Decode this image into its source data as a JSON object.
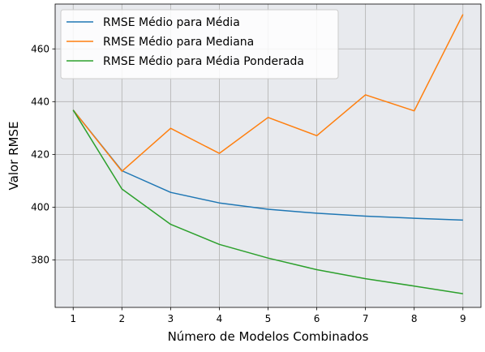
{
  "chart_data": {
    "type": "line",
    "xlabel": "Número de Modelos Combinados",
    "ylabel": "Valor RMSE",
    "x": [
      1,
      2,
      3,
      4,
      5,
      6,
      7,
      8,
      9
    ],
    "xticks": [
      1,
      2,
      3,
      4,
      5,
      6,
      7,
      8,
      9
    ],
    "yticks": [
      380,
      400,
      420,
      440,
      460
    ],
    "xlim": [
      0.63,
      9.37
    ],
    "ylim": [
      362,
      477
    ],
    "grid": true,
    "legend_position": "top-left",
    "series": [
      {
        "name": "RMSE Médio para Média",
        "color": "#1f77b4",
        "values": [
          436.8,
          413.8,
          405.6,
          401.6,
          399.2,
          397.7,
          396.6,
          395.8,
          395.1
        ]
      },
      {
        "name": "RMSE Médio para Mediana",
        "color": "#ff7f0e",
        "values": [
          436.8,
          413.6,
          429.9,
          420.4,
          434.0,
          427.1,
          442.6,
          436.5,
          473.1
        ]
      },
      {
        "name": "RMSE Médio para Média Ponderada",
        "color": "#2ca02c",
        "values": [
          436.8,
          406.9,
          393.5,
          385.9,
          380.7,
          376.3,
          372.9,
          370.1,
          367.2
        ]
      }
    ]
  }
}
